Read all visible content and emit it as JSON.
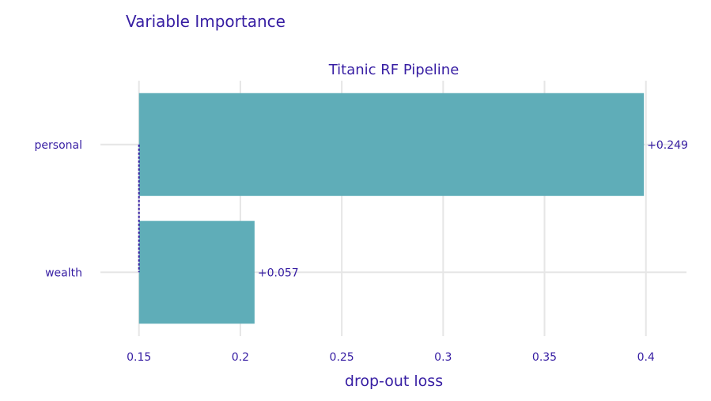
{
  "figure": {
    "title": "Variable Importance"
  },
  "chart_data": {
    "type": "bar",
    "orientation": "horizontal",
    "subtitle": "Titanic RF Pipeline",
    "xlabel": "drop-out loss",
    "ylabel": "",
    "baseline": 0.15,
    "xlim": [
      0.131,
      0.42
    ],
    "xticks": [
      0.15,
      0.2,
      0.25,
      0.3,
      0.35,
      0.4
    ],
    "xtick_labels": [
      "0.15",
      "0.2",
      "0.25",
      "0.3",
      "0.35",
      "0.4"
    ],
    "categories": [
      "personal",
      "wealth"
    ],
    "values": [
      0.399,
      0.207
    ],
    "labels": [
      "+0.249",
      "+0.057"
    ],
    "bar_color": "#5fadb8",
    "baseline_color": "#371ea3",
    "grid": true
  }
}
